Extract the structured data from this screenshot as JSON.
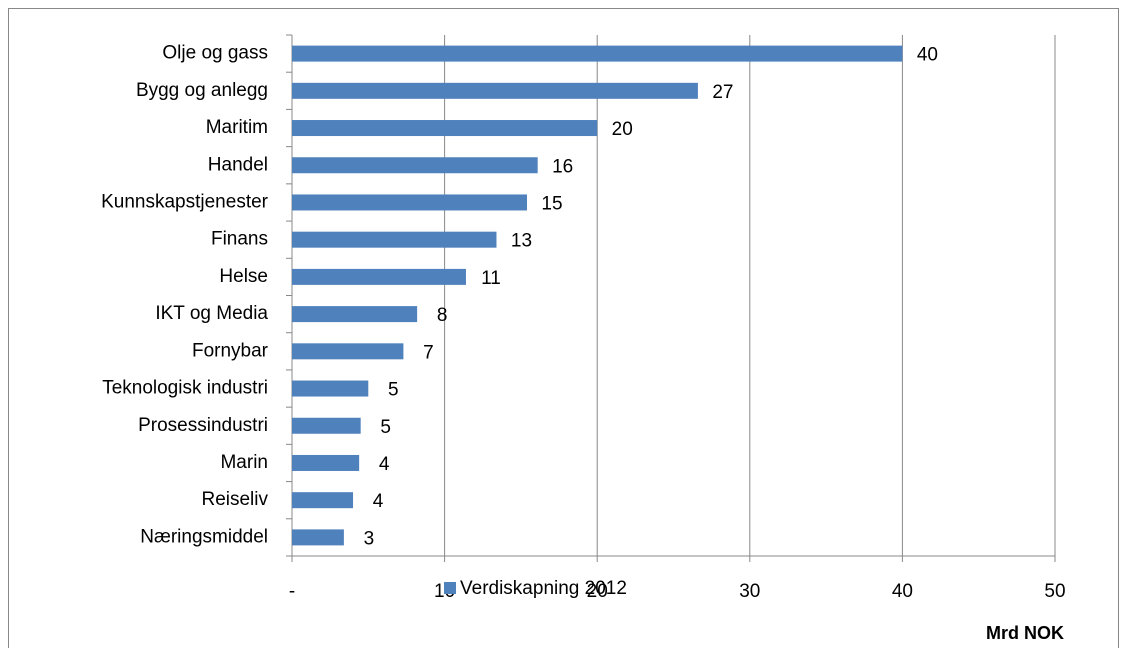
{
  "chart_data": {
    "type": "bar",
    "orientation": "horizontal",
    "categories": [
      "Olje og gass",
      "Bygg og anlegg",
      "Maritim",
      "Handel",
      "Kunnskapstjenester",
      "Finans",
      "Helse",
      "IKT og Media",
      "Fornybar",
      "Teknologisk industri",
      "Prosessindustri",
      "Marin",
      "Reiseliv",
      "Næringsmiddel"
    ],
    "series": [
      {
        "name": "Verdiskapning 2012",
        "color": "#4f81bd",
        "values": [
          40,
          26.6,
          20,
          16.1,
          15.4,
          13.4,
          11.4,
          8.2,
          7.3,
          5,
          4.5,
          4.4,
          4,
          3.4
        ],
        "value_labels": [
          "40",
          "27",
          "20",
          "16",
          "15",
          "13",
          "11",
          "8",
          "7",
          "5",
          "5",
          "4",
          "4",
          "3"
        ]
      }
    ],
    "xlim": [
      0,
      50
    ],
    "xticks": [
      {
        "value": 0,
        "label": "-"
      },
      10,
      20,
      30,
      40,
      50
    ],
    "grid": true,
    "legend": "bottom",
    "x_label": "Mrd NOK"
  }
}
